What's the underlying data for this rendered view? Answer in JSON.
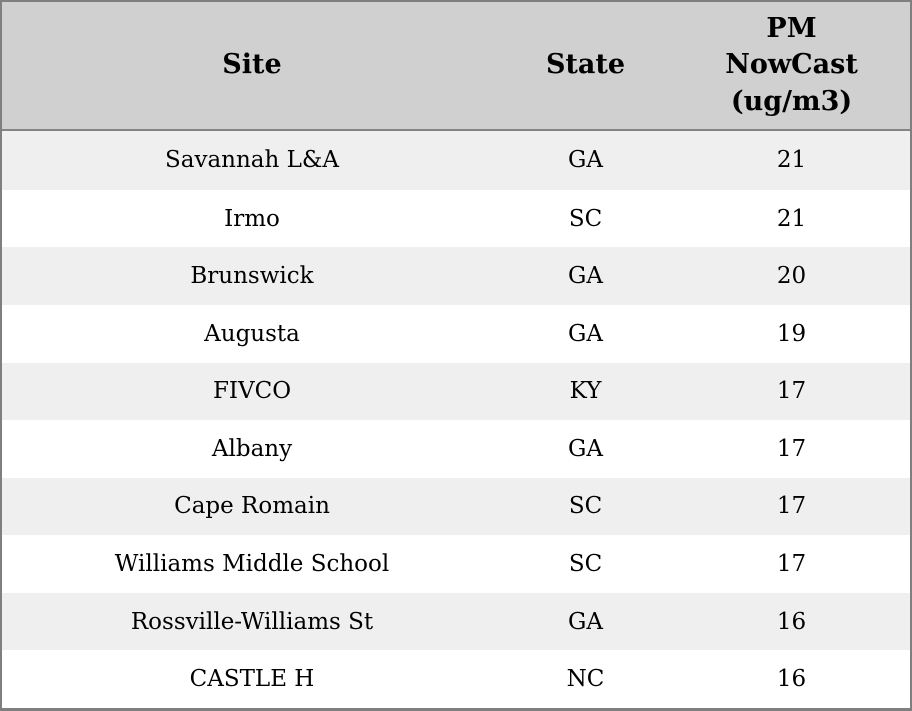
{
  "table": {
    "headers": {
      "site": "Site",
      "state": "State",
      "value": "PM NowCast (ug/m3)"
    },
    "rows": [
      {
        "site": "Savannah L&A",
        "state": "GA",
        "value": "21"
      },
      {
        "site": "Irmo",
        "state": "SC",
        "value": "21"
      },
      {
        "site": "Brunswick",
        "state": "GA",
        "value": "20"
      },
      {
        "site": "Augusta",
        "state": "GA",
        "value": "19"
      },
      {
        "site": "FIVCO",
        "state": "KY",
        "value": "17"
      },
      {
        "site": "Albany",
        "state": "GA",
        "value": "17"
      },
      {
        "site": "Cape Romain",
        "state": "SC",
        "value": "17"
      },
      {
        "site": "Williams Middle School",
        "state": "SC",
        "value": "17"
      },
      {
        "site": "Rossville-Williams St",
        "state": "GA",
        "value": "16"
      },
      {
        "site": "CASTLE H",
        "state": "NC",
        "value": "16"
      }
    ]
  },
  "colors": {
    "header_bg": "#d0d0d0",
    "row_alt_bg": "#efefef",
    "row_bg": "#ffffff",
    "outer_border": "#7f7f7f",
    "header_divider": "#848484",
    "text": "#000000"
  },
  "chart_data": {
    "type": "table",
    "columns": [
      "Site",
      "State",
      "PM NowCast (ug/m3)"
    ],
    "rows": [
      [
        "Savannah L&A",
        "GA",
        21
      ],
      [
        "Irmo",
        "SC",
        21
      ],
      [
        "Brunswick",
        "GA",
        20
      ],
      [
        "Augusta",
        "GA",
        19
      ],
      [
        "FIVCO",
        "KY",
        17
      ],
      [
        "Albany",
        "GA",
        17
      ],
      [
        "Cape Romain",
        "SC",
        17
      ],
      [
        "Williams Middle School",
        "SC",
        17
      ],
      [
        "Rossville-Williams St",
        "GA",
        16
      ],
      [
        "CASTLE H",
        "NC",
        16
      ]
    ]
  }
}
